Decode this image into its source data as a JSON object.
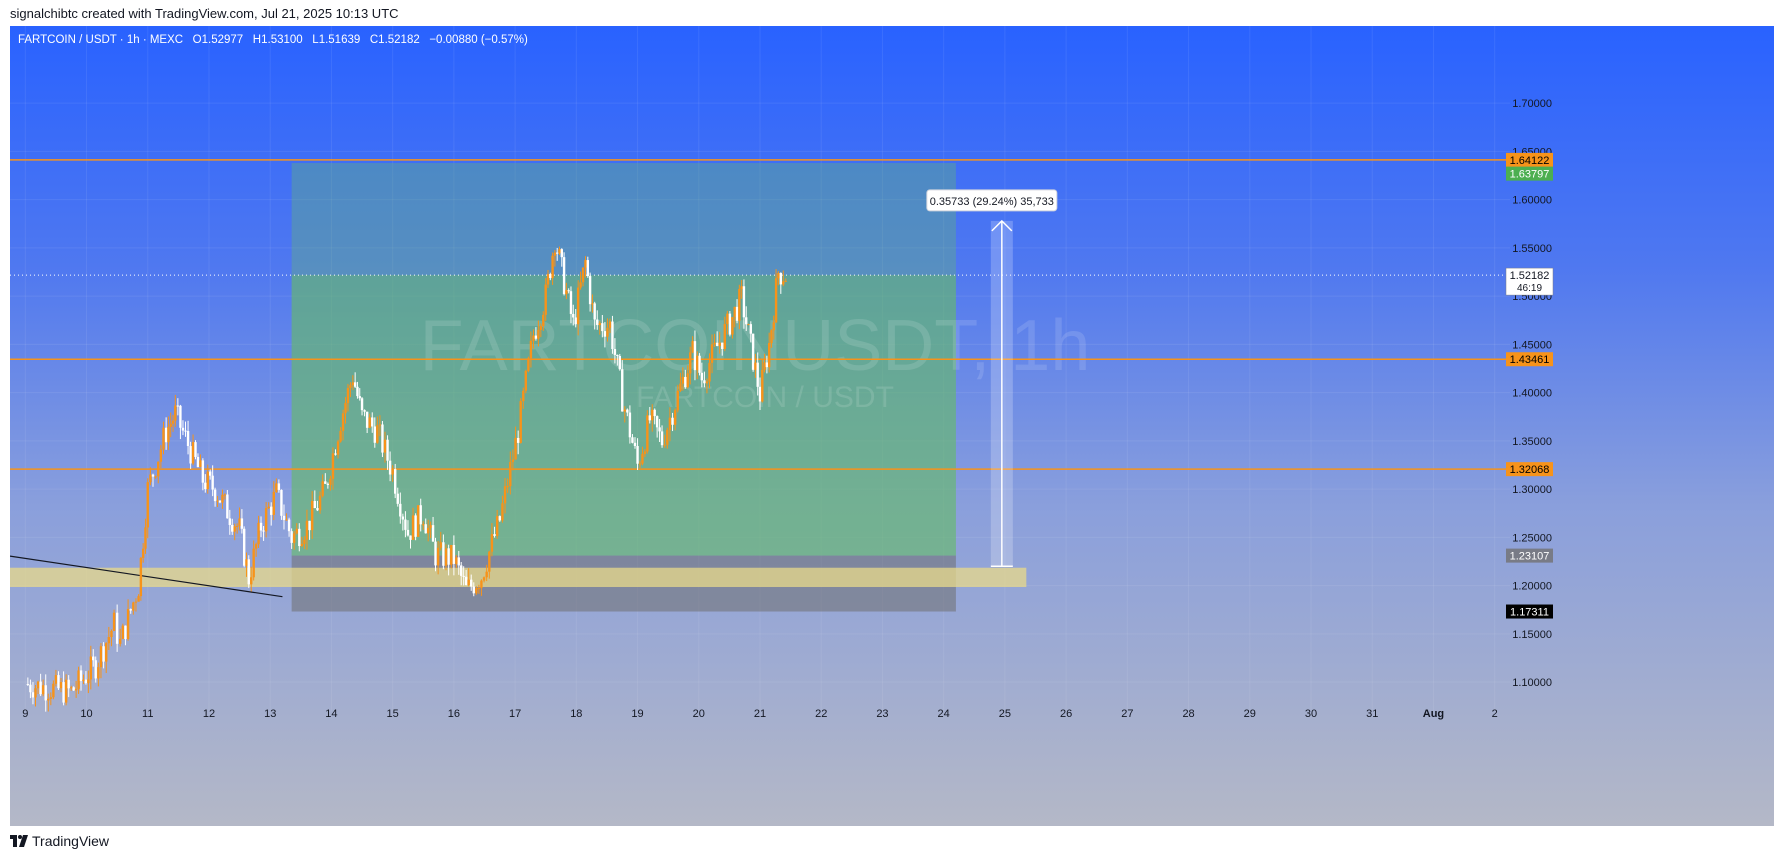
{
  "header": {
    "created_text": "signalchibtc created with TradingView.com, Jul 21, 2025 10:13 UTC"
  },
  "legend": {
    "symbol": "FARTCOIN / USDT · 1h · MEXC",
    "o_label": "O",
    "o_value": "1.52977",
    "h_label": "H",
    "h_value": "1.53100",
    "l_label": "L",
    "l_value": "1.51639",
    "c_label": "C",
    "c_value": "1.52182",
    "change": "−0.00880 (−0.57%)"
  },
  "watermark": {
    "main": "FARTCOINUSDT, 1h",
    "sub": "FARTCOIN / USDT"
  },
  "footer": {
    "logo_text": "TradingView"
  },
  "colors": {
    "bull": "#f7931a",
    "bear": "#ffffff",
    "hline": "#f7931a",
    "green_zone": "#66bb6a",
    "grey_zone": "#707070",
    "yellow_zone": "#e8d98a",
    "price_line": "#ffffff"
  },
  "chart_data": {
    "type": "candlestick",
    "timeframe": "1h",
    "y_range": [
      1.07,
      1.78
    ],
    "x_range_days": [
      8.75,
      33.25
    ],
    "y_ticks": [
      "1.70000",
      "1.65000",
      "1.60000",
      "1.55000",
      "1.50000",
      "1.45000",
      "1.40000",
      "1.35000",
      "1.30000",
      "1.25000",
      "1.20000",
      "1.15000",
      "1.10000"
    ],
    "x_ticks": [
      {
        "day": 9,
        "label": "9"
      },
      {
        "day": 10,
        "label": "10"
      },
      {
        "day": 11,
        "label": "11"
      },
      {
        "day": 12,
        "label": "12"
      },
      {
        "day": 13,
        "label": "13"
      },
      {
        "day": 14,
        "label": "14"
      },
      {
        "day": 15,
        "label": "15"
      },
      {
        "day": 16,
        "label": "16"
      },
      {
        "day": 17,
        "label": "17"
      },
      {
        "day": 18,
        "label": "18"
      },
      {
        "day": 19,
        "label": "19"
      },
      {
        "day": 20,
        "label": "20"
      },
      {
        "day": 21,
        "label": "21"
      },
      {
        "day": 22,
        "label": "22"
      },
      {
        "day": 23,
        "label": "23"
      },
      {
        "day": 24,
        "label": "24"
      },
      {
        "day": 25,
        "label": "25"
      },
      {
        "day": 26,
        "label": "26"
      },
      {
        "day": 27,
        "label": "27"
      },
      {
        "day": 28,
        "label": "28"
      },
      {
        "day": 29,
        "label": "29"
      },
      {
        "day": 30,
        "label": "30"
      },
      {
        "day": 31,
        "label": "31"
      },
      {
        "day": 32,
        "label": "Aug"
      },
      {
        "day": 33,
        "label": "2"
      }
    ],
    "horizontal_levels": [
      {
        "value": 1.64122,
        "label": "1.64122",
        "color": "#f7931a"
      },
      {
        "value": 1.43461,
        "label": "1.43461",
        "color": "#f7931a"
      },
      {
        "value": 1.32068,
        "label": "1.32068",
        "color": "#f7931a"
      }
    ],
    "price_labels": [
      {
        "value": 1.64122,
        "label": "1.64122",
        "bg": "#f7931a",
        "fg": "#000000"
      },
      {
        "value": 1.62697,
        "label": "1.63797",
        "bg": "#4caf50",
        "fg": "#ffffff"
      },
      {
        "value": 1.43461,
        "label": "1.43461",
        "bg": "#f7931a",
        "fg": "#000000"
      },
      {
        "value": 1.32068,
        "label": "1.32068",
        "bg": "#f7931a",
        "fg": "#000000"
      },
      {
        "value": 1.23107,
        "label": "1.23107",
        "bg": "#787b86",
        "fg": "#ffffff"
      },
      {
        "value": 1.17311,
        "label": "1.17311",
        "bg": "#000000",
        "fg": "#ffffff"
      }
    ],
    "current_price": {
      "value": 1.52182,
      "label": "1.52182",
      "countdown": "46:19"
    },
    "measure": {
      "text": "0.35733 (29.24%) 35,733",
      "from": 1.22,
      "to": 1.578,
      "day": 24.95
    },
    "long_position": {
      "start_day": 13.35,
      "end_day": 24.2,
      "entry": 1.23107,
      "target": 1.63797,
      "stop": 1.17311,
      "fill_top": 1.52182
    },
    "support_zone": {
      "start_day": 8.75,
      "end_day": 25.35,
      "top": 1.2185,
      "bottom": 1.1985
    },
    "trendline": {
      "from": {
        "day": 8.75,
        "price": 1.2305
      },
      "to": {
        "day": 13.2,
        "price": 1.1885
      }
    },
    "path_points": [
      [
        9.0,
        1.098
      ],
      [
        9.75,
        1.09
      ],
      [
        10.15,
        1.118
      ],
      [
        10.45,
        1.16
      ],
      [
        10.55,
        1.14
      ],
      [
        10.85,
        1.2
      ],
      [
        11.0,
        1.3
      ],
      [
        11.3,
        1.36
      ],
      [
        11.45,
        1.378
      ],
      [
        11.7,
        1.34
      ],
      [
        11.9,
        1.31
      ],
      [
        12.1,
        1.3
      ],
      [
        12.3,
        1.278
      ],
      [
        12.5,
        1.258
      ],
      [
        12.65,
        1.208
      ],
      [
        12.85,
        1.262
      ],
      [
        13.1,
        1.295
      ],
      [
        13.35,
        1.25
      ],
      [
        13.6,
        1.262
      ],
      [
        13.9,
        1.3
      ],
      [
        14.15,
        1.372
      ],
      [
        14.35,
        1.418
      ],
      [
        14.5,
        1.375
      ],
      [
        14.75,
        1.36
      ],
      [
        15.0,
        1.318
      ],
      [
        15.25,
        1.255
      ],
      [
        15.5,
        1.275
      ],
      [
        15.7,
        1.232
      ],
      [
        16.0,
        1.228
      ],
      [
        16.2,
        1.195
      ],
      [
        16.45,
        1.21
      ],
      [
        16.75,
        1.268
      ],
      [
        17.05,
        1.36
      ],
      [
        17.3,
        1.46
      ],
      [
        17.5,
        1.5
      ],
      [
        17.65,
        1.56
      ],
      [
        17.8,
        1.515
      ],
      [
        17.95,
        1.47
      ],
      [
        18.15,
        1.535
      ],
      [
        18.3,
        1.47
      ],
      [
        18.55,
        1.47
      ],
      [
        18.75,
        1.395
      ],
      [
        19.0,
        1.325
      ],
      [
        19.2,
        1.372
      ],
      [
        19.4,
        1.35
      ],
      [
        19.7,
        1.405
      ],
      [
        19.9,
        1.442
      ],
      [
        20.05,
        1.415
      ],
      [
        20.3,
        1.448
      ],
      [
        20.55,
        1.478
      ],
      [
        20.7,
        1.498
      ],
      [
        20.85,
        1.448
      ],
      [
        21.0,
        1.398
      ],
      [
        21.15,
        1.45
      ],
      [
        21.3,
        1.525
      ],
      [
        21.42,
        1.522
      ]
    ]
  }
}
